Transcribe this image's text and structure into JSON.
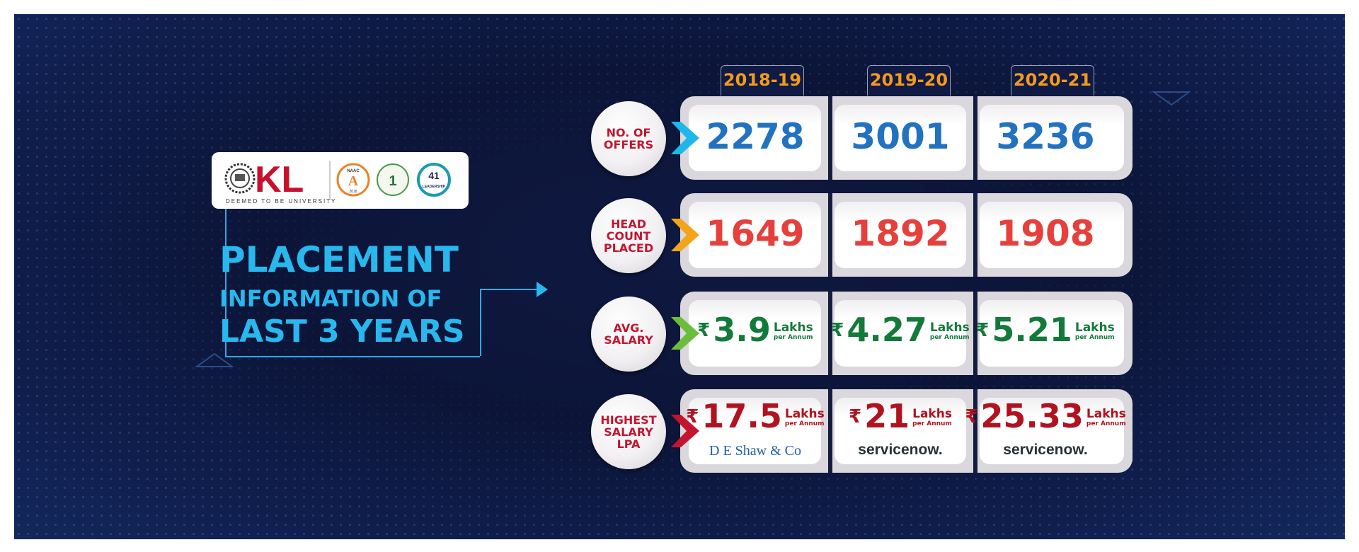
{
  "logo": {
    "brand": "KL",
    "subtitle": "DEEMED TO BE UNIVERSITY",
    "badges": [
      {
        "icon": "naac-icon",
        "top": "NAAC",
        "grade": "A",
        "year": "2018"
      },
      {
        "icon": "rank-1-icon",
        "value": "1"
      },
      {
        "icon": "years-leadership-icon",
        "value": "41",
        "caption": "LEADERSHIP"
      }
    ]
  },
  "title": {
    "line1": "PLACEMENT",
    "line2": "INFORMATION OF",
    "line3": "LAST 3 YEARS"
  },
  "years": [
    "2018-19",
    "2019-20",
    "2020-21"
  ],
  "rows": {
    "offers": {
      "label": "NO. OF\nOFFERS",
      "values": [
        "2278",
        "3001",
        "3236"
      ],
      "accent": "#1fb7ea"
    },
    "headcount": {
      "label": "HEAD\nCOUNT\nPLACED",
      "values": [
        "1649",
        "1892",
        "1908"
      ],
      "accent": "#f3a417"
    },
    "avg_salary": {
      "label": "AVG.\nSALARY",
      "currency": "₹",
      "unit": "Lakhs",
      "per": "per Annum",
      "values": [
        "3.9",
        "4.27",
        "5.21"
      ],
      "accent": "#6cbd3a"
    },
    "highest_salary": {
      "label": "HIGHEST\nSALARY\nLPA",
      "currency": "₹",
      "unit": "Lakhs",
      "per": "per Annum",
      "values": [
        "17.5",
        "21",
        "25.33"
      ],
      "companies": [
        "D E Shaw & Co",
        "servicenow.",
        "servicenow."
      ],
      "accent": "#c4142f"
    }
  },
  "colors": {
    "background": "#0c1538",
    "year": "#f39a1e",
    "title": "#29b8ee",
    "offers": "#2272bf",
    "headcount": "#e6403c",
    "avg": "#137a3a",
    "highest": "#b0121f"
  }
}
